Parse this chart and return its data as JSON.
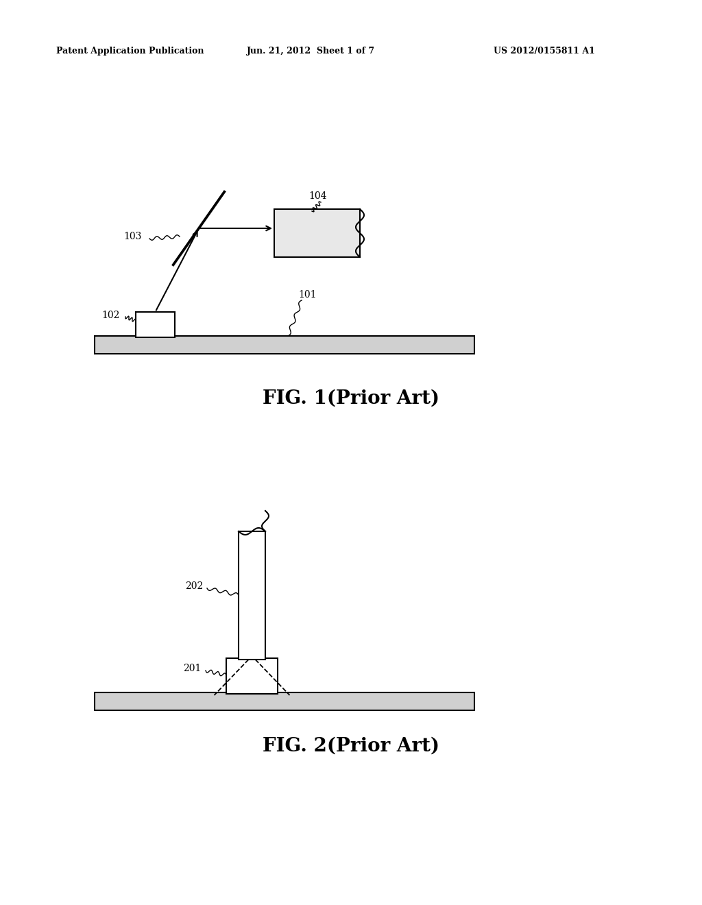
{
  "bg_color": "#ffffff",
  "line_color": "#000000",
  "header_left": "Patent Application Publication",
  "header_mid": "Jun. 21, 2012  Sheet 1 of 7",
  "header_right": "US 2012/0155811 A1",
  "fig1_caption": "FIG. 1(Prior Art)",
  "fig2_caption": "FIG. 2(Prior Art)"
}
